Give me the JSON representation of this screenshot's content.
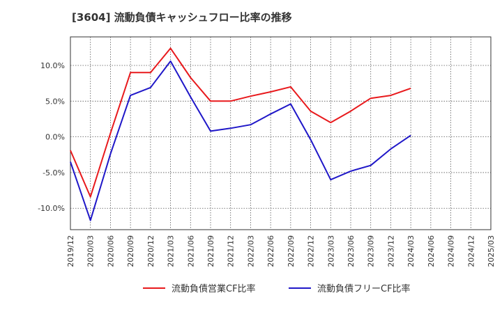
{
  "chart_data": {
    "type": "line",
    "title": "[3604]  流動負債キャッシュフロー比率の推移",
    "xlabel": "",
    "ylabel": "",
    "x": [
      "2019/12",
      "2020/03",
      "2020/06",
      "2020/09",
      "2020/12",
      "2021/03",
      "2021/06",
      "2021/09",
      "2021/12",
      "2022/03",
      "2022/06",
      "2022/09",
      "2022/12",
      "2023/03",
      "2023/06",
      "2023/09",
      "2023/12",
      "2024/03",
      "2024/06",
      "2024/09",
      "2024/12",
      "2025/03"
    ],
    "ylim": [
      -13.0,
      14.0
    ],
    "yticks": [
      10.0,
      5.0,
      0.0,
      -5.0,
      -10.0
    ],
    "ytick_labels": [
      "10.0%",
      "5.0%",
      "0.0%",
      "-5.0%",
      "-10.0%"
    ],
    "grid": true,
    "legend_position": "bottom",
    "series": [
      {
        "name": "流動負債営業CF比率",
        "color": "#e8191c",
        "values": [
          -1.9,
          -8.4,
          0.5,
          9.0,
          9.0,
          12.4,
          8.3,
          5.0,
          5.0,
          5.7,
          6.3,
          7.0,
          3.6,
          2.0,
          3.6,
          5.4,
          5.8,
          6.8,
          null,
          null,
          null,
          null
        ]
      },
      {
        "name": "流動負債フリーCF比率",
        "color": "#1f17c8",
        "values": [
          -3.5,
          -11.7,
          -2.4,
          5.8,
          6.9,
          10.6,
          5.6,
          0.8,
          1.2,
          1.7,
          3.2,
          4.6,
          -0.4,
          -6.0,
          -4.8,
          -4.0,
          -1.7,
          0.2,
          null,
          null,
          null,
          null
        ]
      }
    ]
  }
}
